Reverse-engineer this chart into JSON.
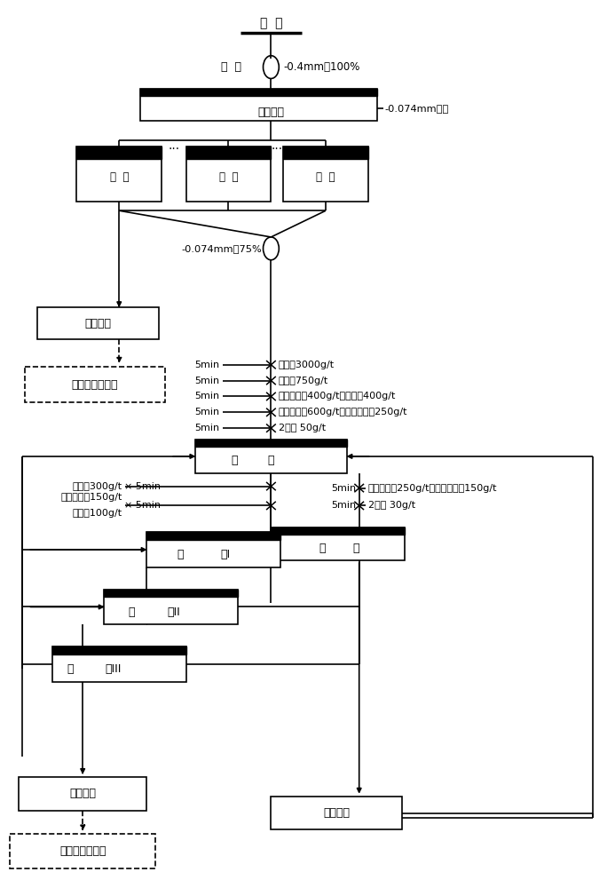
{
  "bg_color": "#ffffff",
  "lc": "#000000",
  "labels": {
    "yuankuang": "原  矿",
    "moguang": "磨  矿",
    "moguang_note": "-0.4mm占100%",
    "fenjichongxuan": "分级重选",
    "size_note": "-0.074mm粒级",
    "shaker": "摇  床",
    "circle075": "-0.074mm占75%",
    "gravity_conc": "重选精矿",
    "pressure_leach": "加压浸出回收铀",
    "rougher": "粗  选",
    "scavenger": "扫  选",
    "cleaner1": "精  选I",
    "cleaner2": "精  选II",
    "cleaner3": "精  选III",
    "float_conc": "浮选精矿",
    "stir_leach": "搅拌浸出回收铀",
    "float_tail": "浮选尾矿",
    "dots": "···"
  },
  "reagents_rougher": [
    "碳酸钠3000g/t",
    "水玻璃750g/t",
    "六偏磷酸钠400g/t，硫酸铝400g/t",
    "苯甲羟肟酸600g/t，氧化石蜡皂250g/t",
    "2号油 50g/t"
  ],
  "reagents_scavenger": [
    "苯甲羟肟酸250g/t，氧化石蜡皂150g/t",
    "2号油 30g/t"
  ],
  "reagents_cleaner_line1": "水玻璃300g/t",
  "reagents_cleaner_line2": "六偏磷酸钠150g/t",
  "reagents_cleaner_line3": "硫酸铝100g/t",
  "label_5min": "5min"
}
